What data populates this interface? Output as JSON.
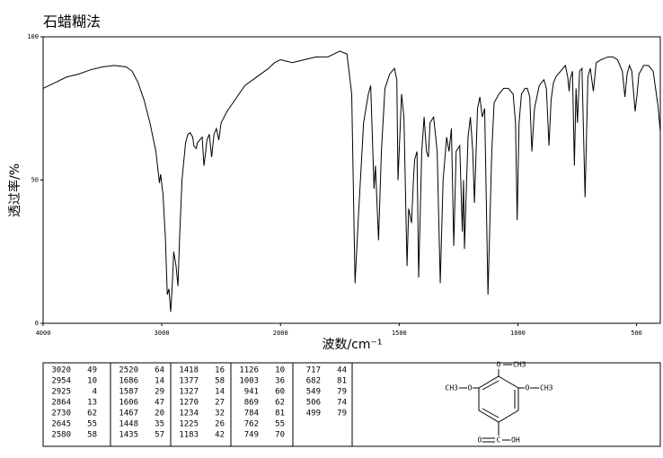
{
  "chart_data": {
    "type": "line",
    "title": "石蜡糊法",
    "x_label": "波数/cm⁻¹",
    "y_label": "透过率/%",
    "xlim": [
      4000,
      400
    ],
    "ylim": [
      0,
      100
    ],
    "xticks": [
      4000,
      3000,
      2000,
      1500,
      1000,
      500
    ],
    "yticks": [
      0,
      50,
      100
    ],
    "x_scale_change_at": 2000,
    "x_scale_factor_below": 2,
    "color": "#000000",
    "x": [
      4000,
      3900,
      3800,
      3700,
      3600,
      3500,
      3400,
      3300,
      3250,
      3200,
      3150,
      3100,
      3050,
      3020,
      3010,
      2990,
      2970,
      2954,
      2940,
      2925,
      2910,
      2900,
      2880,
      2864,
      2850,
      2830,
      2800,
      2780,
      2760,
      2740,
      2730,
      2710,
      2700,
      2680,
      2660,
      2645,
      2630,
      2620,
      2600,
      2580,
      2560,
      2540,
      2520,
      2500,
      2450,
      2400,
      2300,
      2200,
      2100,
      2050,
      2000,
      1950,
      1900,
      1850,
      1800,
      1750,
      1720,
      1700,
      1686,
      1670,
      1650,
      1630,
      1620,
      1615,
      1606,
      1600,
      1587,
      1575,
      1560,
      1540,
      1520,
      1510,
      1505,
      1490,
      1480,
      1467,
      1460,
      1448,
      1440,
      1435,
      1425,
      1418,
      1405,
      1395,
      1385,
      1377,
      1370,
      1355,
      1340,
      1327,
      1315,
      1300,
      1290,
      1280,
      1270,
      1260,
      1245,
      1234,
      1229,
      1225,
      1210,
      1200,
      1190,
      1183,
      1170,
      1160,
      1150,
      1140,
      1126,
      1110,
      1100,
      1080,
      1060,
      1040,
      1020,
      1010,
      1003,
      995,
      985,
      970,
      960,
      950,
      941,
      930,
      910,
      890,
      880,
      869,
      860,
      850,
      840,
      820,
      810,
      800,
      790,
      784,
      780,
      770,
      762,
      755,
      749,
      740,
      730,
      717,
      705,
      695,
      682,
      670,
      650,
      620,
      600,
      580,
      560,
      549,
      540,
      530,
      520,
      506,
      499,
      490,
      470,
      450,
      430,
      410,
      400
    ],
    "values": [
      82,
      84,
      86,
      87,
      88.5,
      89.5,
      90,
      89.5,
      88,
      84,
      78,
      70,
      60,
      49,
      52,
      45,
      30,
      10,
      12,
      4,
      15,
      25,
      20,
      13,
      30,
      50,
      63,
      66,
      66.5,
      65,
      62,
      61,
      63,
      64,
      65,
      55,
      60,
      64,
      66,
      58,
      66,
      68,
      64,
      70,
      74,
      77,
      83,
      86,
      89,
      91,
      92,
      91,
      92,
      93,
      93,
      95,
      94,
      80,
      14,
      40,
      70,
      80,
      83,
      70,
      47,
      55,
      29,
      60,
      82,
      87,
      89,
      85,
      50,
      80,
      72,
      20,
      40,
      35,
      50,
      57,
      60,
      16,
      60,
      72,
      60,
      58,
      70,
      72,
      60,
      14,
      50,
      65,
      60,
      68,
      27,
      60,
      62,
      32,
      50,
      26,
      65,
      72,
      60,
      42,
      75,
      79,
      72,
      75,
      10,
      60,
      77,
      80,
      82,
      82,
      80,
      70,
      36,
      70,
      80,
      82,
      82,
      79,
      60,
      75,
      83,
      85,
      82,
      62,
      78,
      84,
      86,
      88,
      89,
      90,
      86,
      81,
      85,
      88,
      55,
      82,
      70,
      88,
      89,
      44,
      86,
      89,
      81,
      91,
      92,
      93,
      93,
      92,
      88,
      79,
      87,
      90,
      88,
      74,
      79,
      87,
      90,
      90,
      88,
      76,
      67
    ]
  },
  "peak_table": [
    [
      [
        3020,
        49
      ],
      [
        2954,
        10
      ],
      [
        2925,
        4
      ],
      [
        2864,
        13
      ],
      [
        2730,
        62
      ],
      [
        2645,
        55
      ],
      [
        2580,
        58
      ]
    ],
    [
      [
        2520,
        64
      ],
      [
        1686,
        14
      ],
      [
        1587,
        29
      ],
      [
        1606,
        47
      ],
      [
        1467,
        20
      ],
      [
        1448,
        35
      ],
      [
        1435,
        57
      ]
    ],
    [
      [
        1418,
        16
      ],
      [
        1377,
        58
      ],
      [
        1327,
        14
      ],
      [
        1270,
        27
      ],
      [
        1234,
        32
      ],
      [
        1225,
        26
      ],
      [
        1183,
        42
      ]
    ],
    [
      [
        1126,
        10
      ],
      [
        1003,
        36
      ],
      [
        941,
        60
      ],
      [
        869,
        62
      ],
      [
        784,
        81
      ],
      [
        762,
        55
      ],
      [
        749,
        70
      ]
    ],
    [
      [
        717,
        44
      ],
      [
        682,
        81
      ],
      [
        549,
        79
      ],
      [
        506,
        74
      ],
      [
        499,
        79
      ]
    ]
  ],
  "structure": {
    "labels": [
      "O",
      "CH3",
      "CH3",
      "O",
      "O",
      "CH3",
      "C",
      "OH",
      "O"
    ]
  }
}
